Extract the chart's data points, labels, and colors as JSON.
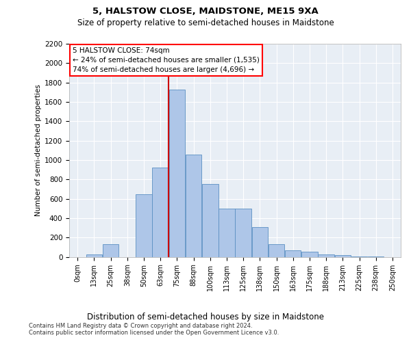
{
  "title1": "5, HALSTOW CLOSE, MAIDSTONE, ME15 9XA",
  "title2": "Size of property relative to semi-detached houses in Maidstone",
  "xlabel": "Distribution of semi-detached houses by size in Maidstone",
  "ylabel": "Number of semi-detached properties",
  "footnote1": "Contains HM Land Registry data © Crown copyright and database right 2024.",
  "footnote2": "Contains public sector information licensed under the Open Government Licence v3.0.",
  "annotation_title": "5 HALSTOW CLOSE: 74sqm",
  "annotation_line1": "← 24% of semi-detached houses are smaller (1,535)",
  "annotation_line2": "74% of semi-detached houses are larger (4,696) →",
  "property_size": 74,
  "bar_labels": [
    "0sqm",
    "13sqm",
    "25sqm",
    "38sqm",
    "50sqm",
    "63sqm",
    "75sqm",
    "88sqm",
    "100sqm",
    "113sqm",
    "125sqm",
    "138sqm",
    "150sqm",
    "163sqm",
    "175sqm",
    "188sqm",
    "213sqm",
    "225sqm",
    "238sqm",
    "250sqm"
  ],
  "bar_heights": [
    0,
    30,
    130,
    0,
    650,
    920,
    1730,
    1060,
    750,
    500,
    500,
    310,
    130,
    70,
    55,
    30,
    20,
    5,
    2,
    0
  ],
  "bar_color": "#aec6e8",
  "bar_edge_color": "#5a8fc2",
  "vline_color": "#cc0000",
  "vline_bar_index": 6,
  "background_color": "#e8eef5",
  "grid_color": "#ffffff",
  "ylim": [
    0,
    2200
  ],
  "yticks": [
    0,
    200,
    400,
    600,
    800,
    1000,
    1200,
    1400,
    1600,
    1800,
    2000,
    2200
  ]
}
